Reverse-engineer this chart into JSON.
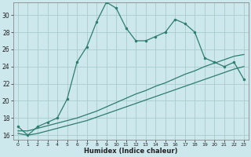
{
  "xlabel": "Humidex (Indice chaleur)",
  "background_color": "#cce8ec",
  "grid_color": "#aacccc",
  "line_color": "#2e7d6e",
  "xlim": [
    -0.5,
    23.5
  ],
  "ylim": [
    15.5,
    31.5
  ],
  "xticks": [
    0,
    1,
    2,
    3,
    4,
    5,
    6,
    7,
    8,
    9,
    10,
    11,
    12,
    13,
    14,
    15,
    16,
    17,
    18,
    19,
    20,
    21,
    22,
    23
  ],
  "yticks": [
    16,
    18,
    20,
    22,
    24,
    26,
    28,
    30
  ],
  "line1_x": [
    0,
    1,
    2,
    3,
    4,
    5,
    6,
    7,
    8,
    9,
    10,
    11,
    12,
    13,
    14,
    15,
    16,
    17,
    18,
    19,
    20,
    21,
    22,
    23
  ],
  "line1_y": [
    17.0,
    16.0,
    17.0,
    17.5,
    18.0,
    20.2,
    24.5,
    26.3,
    29.2,
    31.5,
    30.8,
    28.5,
    27.0,
    27.0,
    27.5,
    28.0,
    29.5,
    29.0,
    28.0,
    25.0,
    24.5,
    24.0,
    24.5,
    22.5
  ],
  "line2_x": [
    0,
    1,
    2,
    3,
    4,
    5,
    6,
    7,
    8,
    9,
    10,
    11,
    12,
    13,
    14,
    15,
    16,
    17,
    18,
    19,
    20,
    21,
    22,
    23
  ],
  "line2_y": [
    16.5,
    16.5,
    16.8,
    17.1,
    17.4,
    17.7,
    18.0,
    18.4,
    18.8,
    19.3,
    19.8,
    20.3,
    20.8,
    21.2,
    21.7,
    22.1,
    22.6,
    23.1,
    23.5,
    24.0,
    24.4,
    24.8,
    25.2,
    25.4
  ],
  "line3_x": [
    0,
    1,
    2,
    3,
    4,
    5,
    6,
    7,
    8,
    9,
    10,
    11,
    12,
    13,
    14,
    15,
    16,
    17,
    18,
    19,
    20,
    21,
    22,
    23
  ],
  "line3_y": [
    16.2,
    16.0,
    16.2,
    16.5,
    16.8,
    17.1,
    17.4,
    17.7,
    18.1,
    18.5,
    18.9,
    19.3,
    19.7,
    20.1,
    20.5,
    20.9,
    21.3,
    21.7,
    22.1,
    22.5,
    22.9,
    23.3,
    23.7,
    24.0
  ]
}
